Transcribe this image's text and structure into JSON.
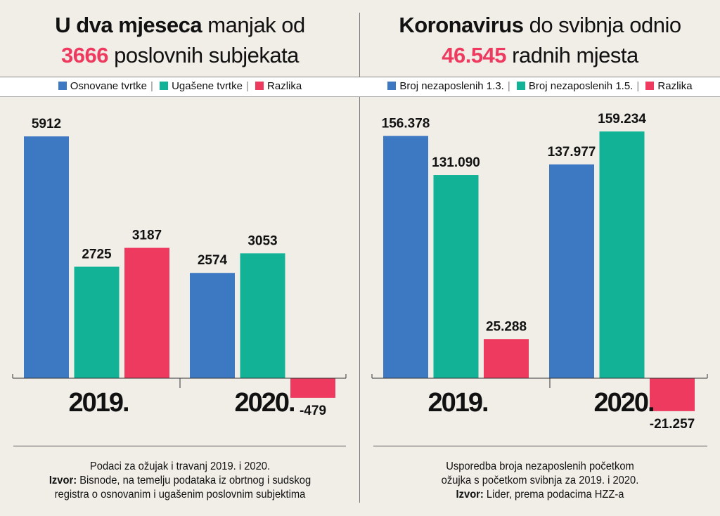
{
  "colors": {
    "blue": "#3d78c2",
    "green": "#12b296",
    "red": "#ee3a5e"
  },
  "left": {
    "title_bold": "U dva mjeseca",
    "title_rest": " manjak od",
    "title_highlight": "3666",
    "title_rest2": " poslovnih subjekata",
    "legend": [
      "Osnovane tvrtke",
      "Ugašene tvrtke",
      "Razlika"
    ],
    "footer_line1": "Podaci za ožujak i travanj 2019. i 2020.",
    "footer_source_label": "Izvor:",
    "footer_source": " Bisnode, na temelju podataka iz obrtnog i sudskog registra o osnovanim i ugašenim poslovnim subjektima"
  },
  "right": {
    "title_bold": "Koronavirus",
    "title_rest": " do svibnja odnio",
    "title_highlight": "46.545",
    "title_rest2": " radnih mjesta",
    "legend": [
      "Broj nezaposlenih 1.3.",
      "Broj nezaposlenih 1.5.",
      "Razlika"
    ],
    "footer_line1": "Usporedba broja nezaposlenih početkom ožujka s početkom svibnja za 2019. i 2020.",
    "footer_source_label": "Izvor:",
    "footer_source": " Lider, prema podacima HZZ-a"
  },
  "chart_data": [
    {
      "type": "bar",
      "categories": [
        "2019.",
        "2020."
      ],
      "series": [
        {
          "name": "Osnovane tvrtke",
          "values": [
            5912,
            2574
          ],
          "labels": [
            "5912",
            "2574"
          ]
        },
        {
          "name": "Ugašene tvrtke",
          "values": [
            2725,
            3053
          ],
          "labels": [
            "2725",
            "3053"
          ]
        },
        {
          "name": "Razlika",
          "values": [
            3187,
            -479
          ],
          "labels": [
            "3187",
            "-479"
          ]
        }
      ],
      "title": "U dva mjeseca manjak od 3666 poslovnih subjekata",
      "legend": "top"
    },
    {
      "type": "bar",
      "categories": [
        "2019.",
        "2020."
      ],
      "series": [
        {
          "name": "Broj nezaposlenih 1.3.",
          "values": [
            156378,
            137977
          ],
          "labels": [
            "156.378",
            "137.977"
          ]
        },
        {
          "name": "Broj nezaposlenih 1.5.",
          "values": [
            131090,
            159234
          ],
          "labels": [
            "131.090",
            "159.234"
          ]
        },
        {
          "name": "Razlika",
          "values": [
            25288,
            -21257
          ],
          "labels": [
            "25.288",
            "-21.257"
          ]
        }
      ],
      "title": "Koronavirus do svibnja odnio 46.545 radnih mjesta",
      "legend": "top"
    }
  ]
}
